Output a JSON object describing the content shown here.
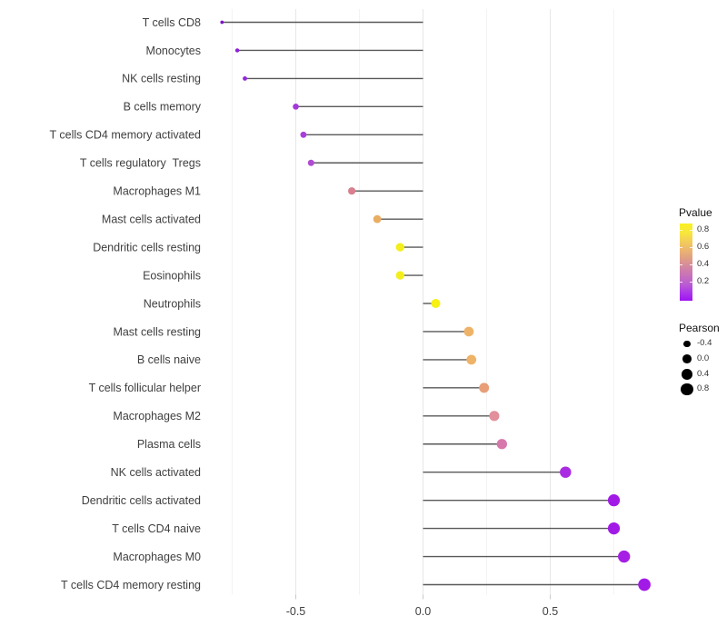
{
  "chart_data": {
    "type": "scatter",
    "variant": "horizontal-lollipop",
    "title": "",
    "xlabel": "",
    "ylabel": "",
    "categories": [
      "T cells CD8",
      "Monocytes",
      "NK cells resting",
      "B cells memory",
      "T cells CD4 memory activated",
      "T cells regulatory  Tregs",
      "Macrophages M1",
      "Mast cells activated",
      "Dendritic cells resting",
      "Eosinophils",
      "Neutrophils",
      "Mast cells resting",
      "B cells naive",
      "T cells follicular helper",
      "Macrophages M2",
      "Plasma cells",
      "NK cells activated",
      "Dendritic cells activated",
      "T cells CD4 naive",
      "Macrophages M0",
      "T cells CD4 memory resting"
    ],
    "series": [
      {
        "name": "Pearson",
        "values": [
          -0.79,
          -0.73,
          -0.7,
          -0.5,
          -0.47,
          -0.44,
          -0.28,
          -0.18,
          -0.09,
          -0.09,
          0.05,
          0.18,
          0.19,
          0.24,
          0.28,
          0.31,
          0.56,
          0.75,
          0.75,
          0.79,
          0.87
        ]
      }
    ],
    "point_colors": [
      "#7a10c9",
      "#8a22d4",
      "#9227d7",
      "#a338da",
      "#a83eda",
      "#b04bd3",
      "#d8808f",
      "#e9ad63",
      "#f3ee1c",
      "#f3ee1c",
      "#f6f013",
      "#efb368",
      "#efb368",
      "#e89f78",
      "#e2909b",
      "#d678ab",
      "#a92ce2",
      "#a21ae6",
      "#a21ae6",
      "#a61fe4",
      "#a21ae6"
    ],
    "stem_color": "#595959",
    "xlim": [
      -0.84,
      0.92
    ],
    "x_major_ticks": [
      -0.5,
      0.0,
      0.5
    ],
    "x_tick_labels": [
      "-0.5",
      "0.0",
      "0.5"
    ],
    "x_minor_gridlines": [
      -0.75,
      -0.25,
      0.25,
      0.75
    ],
    "grid": "vertical only, light gray, major every 0.5, minor every 0.25",
    "legend_position": "right",
    "legends": {
      "pvalue": {
        "title": "Pvalue",
        "tick_labels": [
          "0.8",
          "0.6",
          "0.4",
          "0.2"
        ],
        "gradient_top_to_bottom": [
          "#f9f021",
          "#f8e83a",
          "#f3cf58",
          "#edb76e",
          "#e1a183",
          "#d488a0",
          "#c873b8",
          "#bb5fd0",
          "#ad3ae8",
          "#9e13f2"
        ]
      },
      "pearson": {
        "title": "Pearson",
        "entries": [
          {
            "label": "-0.4",
            "value": -0.4
          },
          {
            "label": "0.0",
            "value": 0.0
          },
          {
            "label": "0.4",
            "value": 0.4
          },
          {
            "label": "0.8",
            "value": 0.8
          }
        ],
        "dot_color": "#000000"
      }
    },
    "colors": {
      "background": "#ffffff",
      "axis_text": "#404040",
      "major_grid": "#e7e7e7",
      "minor_grid": "#f3f3f3",
      "tick_mark": "#c9c9c9"
    }
  }
}
